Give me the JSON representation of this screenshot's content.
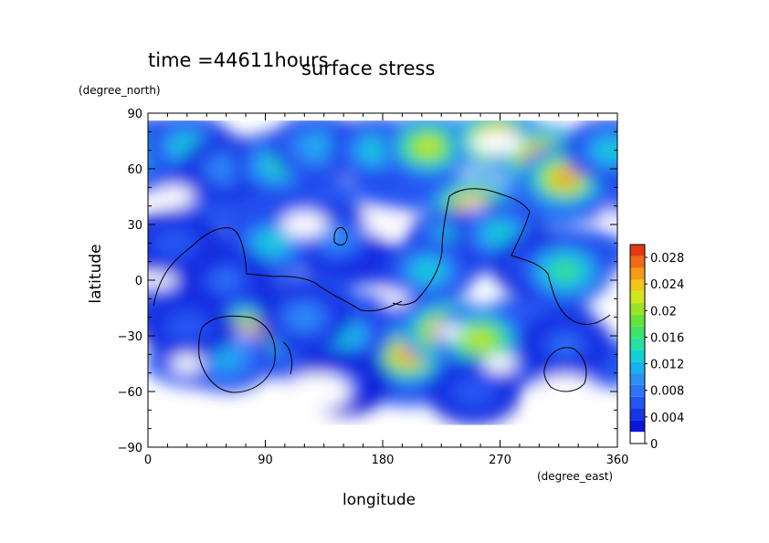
{
  "chart_data": {
    "type": "heatmap",
    "title": "surface stress",
    "subtitle": "time =44611hours",
    "xlabel": "longitude",
    "ylabel": "latitude",
    "x_unit": "(degree_east)",
    "y_unit": "(degree_north)",
    "xlim": [
      0,
      360
    ],
    "ylim": [
      -90,
      90
    ],
    "x_ticks": [
      "0",
      "90",
      "180",
      "270",
      "360"
    ],
    "y_ticks": [
      "90",
      "60",
      "30",
      "0",
      "−30",
      "−60",
      "−90"
    ],
    "colorbar": {
      "min": 0,
      "max": 0.03,
      "tick_labels": [
        "0.028",
        "0.024",
        "0.02",
        "0.016",
        "0.012",
        "0.008",
        "0.004",
        "0"
      ],
      "colors": [
        "#ffffff",
        "#0a17d6",
        "#1736e6",
        "#2556f2",
        "#2f74f7",
        "#2a92f5",
        "#19b2ee",
        "#14d0d2",
        "#26e0a0",
        "#3fe36a",
        "#66e23d",
        "#9ae427",
        "#d0e61f",
        "#f0c81c",
        "#f59a19",
        "#f06a17",
        "#e33a12",
        "#ffffff"
      ]
    },
    "hotspots": [
      {
        "lon": 0,
        "lat": 70,
        "value": 0.016
      },
      {
        "lon": 30,
        "lat": 72,
        "value": 0.012
      },
      {
        "lon": 60,
        "lat": 60,
        "value": 0.008
      },
      {
        "lon": 100,
        "lat": 62,
        "value": 0.014
      },
      {
        "lon": 130,
        "lat": 72,
        "value": 0.01
      },
      {
        "lon": 175,
        "lat": 70,
        "value": 0.012
      },
      {
        "lon": 215,
        "lat": 72,
        "value": 0.022
      },
      {
        "lon": 268,
        "lat": 76,
        "value": 0.03
      },
      {
        "lon": 302,
        "lat": 66,
        "value": 0.03
      },
      {
        "lon": 320,
        "lat": 55,
        "value": 0.026
      },
      {
        "lon": 355,
        "lat": 70,
        "value": 0.012
      },
      {
        "lon": 250,
        "lat": 38,
        "value": 0.03
      },
      {
        "lon": 232,
        "lat": 20,
        "value": 0.014
      },
      {
        "lon": 215,
        "lat": 5,
        "value": 0.012
      },
      {
        "lon": 270,
        "lat": 25,
        "value": 0.012
      },
      {
        "lon": 300,
        "lat": 8,
        "value": 0.009
      },
      {
        "lon": 320,
        "lat": 5,
        "value": 0.016
      },
      {
        "lon": 145,
        "lat": 22,
        "value": 0.008
      },
      {
        "lon": 95,
        "lat": 20,
        "value": 0.012
      },
      {
        "lon": 60,
        "lat": 0,
        "value": 0.006
      },
      {
        "lon": 20,
        "lat": 20,
        "value": 0.005
      },
      {
        "lon": 75,
        "lat": -30,
        "value": 0.03
      },
      {
        "lon": 60,
        "lat": -42,
        "value": 0.01
      },
      {
        "lon": 200,
        "lat": -40,
        "value": 0.026
      },
      {
        "lon": 230,
        "lat": -28,
        "value": 0.03
      },
      {
        "lon": 255,
        "lat": -32,
        "value": 0.022
      },
      {
        "lon": 150,
        "lat": -30,
        "value": 0.012
      },
      {
        "lon": 120,
        "lat": -20,
        "value": 0.008
      },
      {
        "lon": 320,
        "lat": -35,
        "value": 0.006
      },
      {
        "lon": 30,
        "lat": -25,
        "value": 0.005
      },
      {
        "lon": 250,
        "lat": -60,
        "value": 0.005
      },
      {
        "lon": 150,
        "lat": -55,
        "value": 0.004
      }
    ]
  }
}
